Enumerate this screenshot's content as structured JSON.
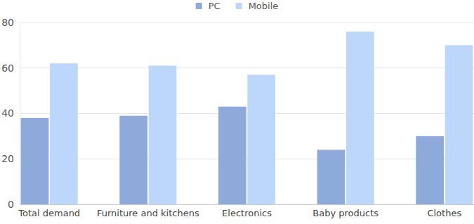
{
  "chart_data": {
    "type": "bar",
    "categories": [
      "Total demand",
      "Furniture and kitchens",
      "Electronics",
      "Baby products",
      "Clothes"
    ],
    "series": [
      {
        "name": "PC",
        "color": "#8eaadb",
        "values": [
          38,
          39,
          43,
          24,
          30
        ]
      },
      {
        "name": "Mobile",
        "color": "#bdd7fb",
        "values": [
          62,
          61,
          57,
          76,
          70
        ]
      }
    ],
    "ylim": [
      0,
      80
    ],
    "yticks": [
      0,
      20,
      40,
      60,
      80
    ],
    "grid": true,
    "legend": "top"
  }
}
